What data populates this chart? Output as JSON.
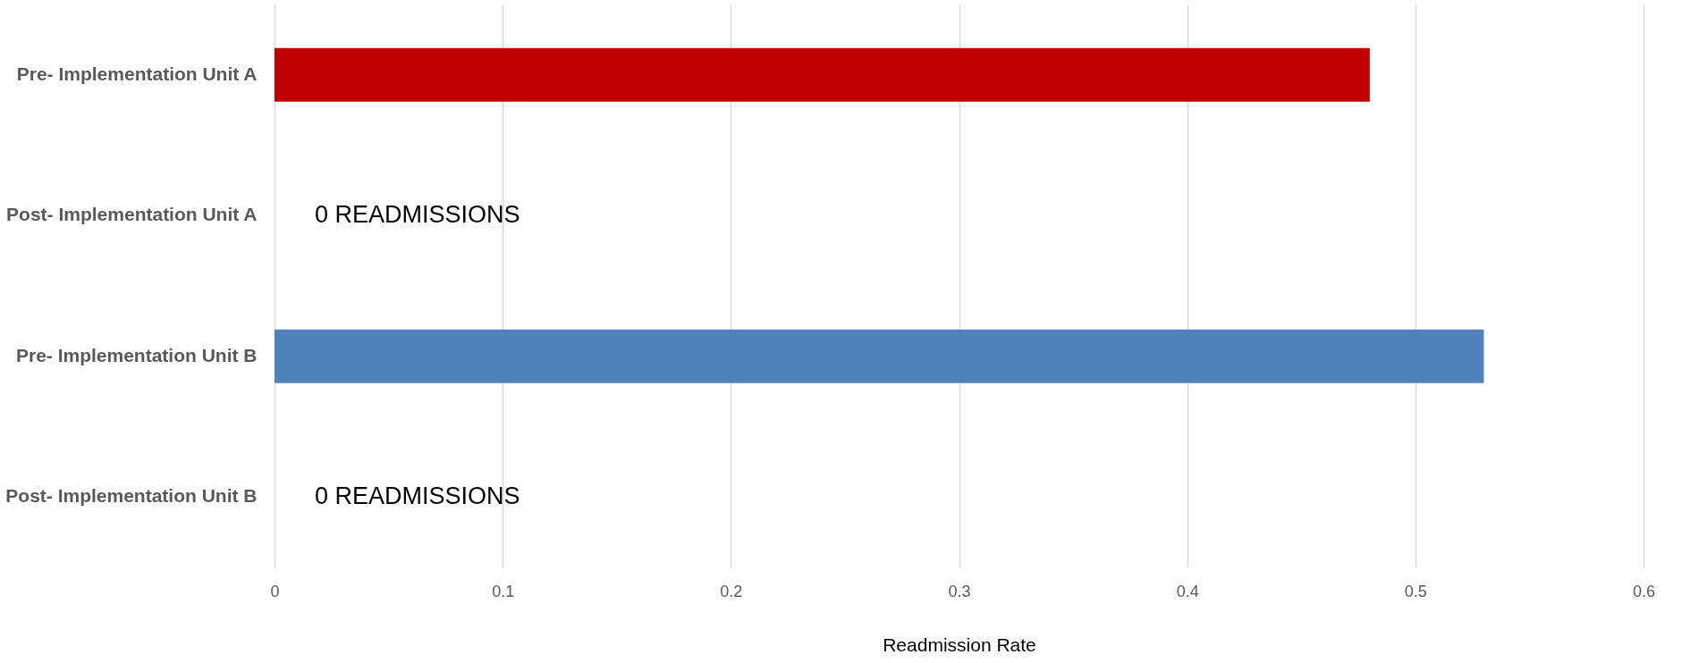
{
  "chart_data": {
    "type": "bar",
    "orientation": "horizontal",
    "xlabel": "Readmission Rate",
    "categories": [
      "Pre- Implementation Unit A",
      "Post- Implementation Unit A",
      "Pre- Implementation Unit B",
      "Post- Implementation Unit B"
    ],
    "values": [
      0.48,
      0,
      0.53,
      0
    ],
    "colors": [
      "#c00000",
      "#c00000",
      "#4f81bd",
      "#4f81bd"
    ],
    "xlim": [
      0,
      0.6
    ],
    "xticks": [
      0,
      0.1,
      0.2,
      0.3,
      0.4,
      0.5,
      0.6
    ],
    "grid": "x",
    "annotations": [
      {
        "text": "0 READMISSIONS",
        "x": 0,
        "y": "Post- Implementation Unit A"
      },
      {
        "text": "0 READMISSIONS",
        "x": 0,
        "y": "Post- Implementation Unit B"
      }
    ]
  }
}
